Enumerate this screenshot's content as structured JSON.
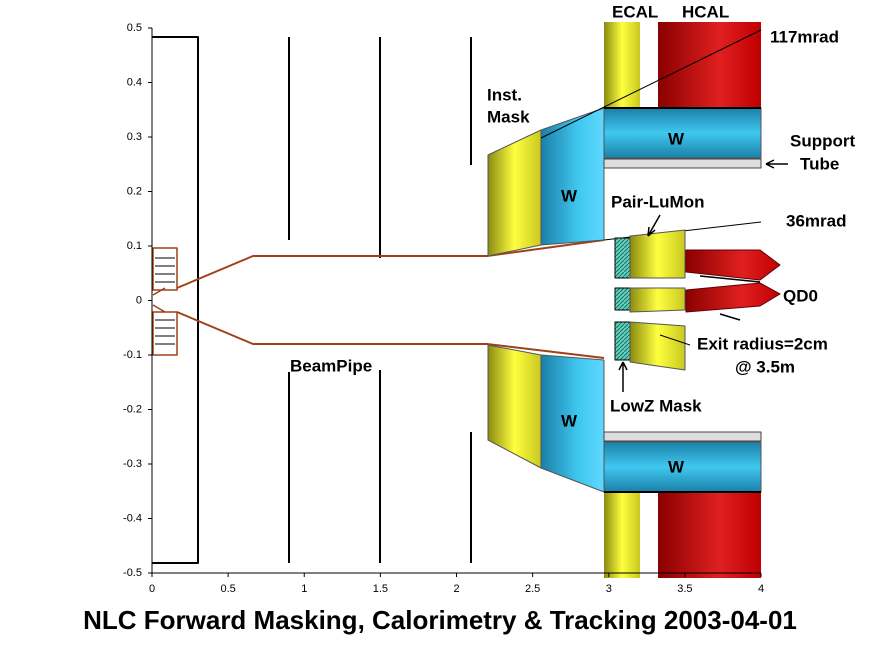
{
  "title": "NLC Forward Masking, Calorimetry & Tracking 2003-04-01",
  "axes": {
    "xlim": [
      0,
      4
    ],
    "ylim": [
      -0.5,
      0.5
    ],
    "xticks": [
      0,
      0.5,
      1,
      1.5,
      2,
      2.5,
      3,
      3.5,
      4
    ],
    "yticks": [
      -0.5,
      -0.4,
      -0.3,
      -0.2,
      -0.1,
      0,
      0.1,
      0.2,
      0.3,
      0.4,
      0.5
    ]
  },
  "labels": [
    "ECAL",
    "HCAL",
    "117mrad",
    "Inst.",
    "Mask",
    "W",
    "W",
    "Support",
    "Tube",
    "Pair-LuMon",
    "36mrad",
    "QD0",
    "Exit radius=2cm",
    "@ 3.5m",
    "BeamPipe",
    "LowZ Mask",
    "W",
    "W"
  ]
}
